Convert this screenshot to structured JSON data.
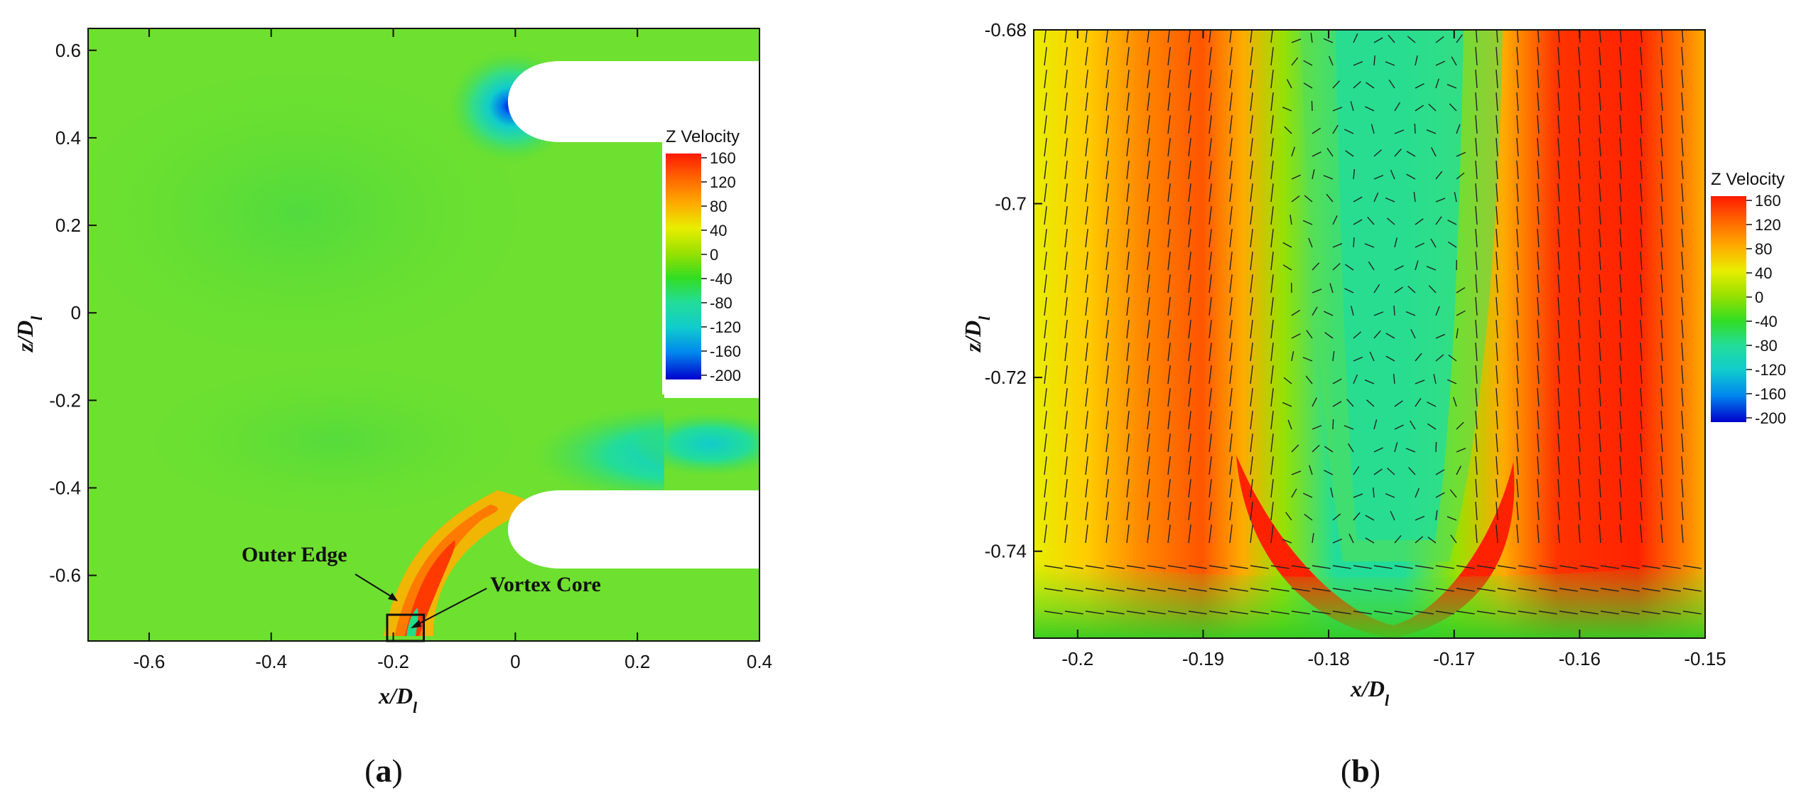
{
  "chart_data": [
    {
      "type": "heatmap",
      "panel_label": "a",
      "xlabel": "x/D",
      "xlabel_sub": "l",
      "ylabel": "z/D",
      "ylabel_sub": "l",
      "xlim": [
        -0.7,
        0.4
      ],
      "ylim": [
        -0.75,
        0.65
      ],
      "xticks": [
        "-0.6",
        "-0.4",
        "-0.2",
        "0",
        "0.2",
        "0.4"
      ],
      "xtick_values": [
        -0.6,
        -0.4,
        -0.2,
        0,
        0.2,
        0.4
      ],
      "yticks": [
        "0.6",
        "0.4",
        "0.2",
        "0",
        "-0.2",
        "-0.4",
        "-0.6"
      ],
      "ytick_values": [
        0.6,
        0.4,
        0.2,
        0,
        -0.2,
        -0.4,
        -0.6
      ],
      "legend": {
        "title": "Z Velocity",
        "placement": "right",
        "levels": [
          "160",
          "120",
          "80",
          "40",
          "0",
          "-40",
          "-80",
          "-120",
          "-160",
          "-200"
        ],
        "level_values": [
          160,
          120,
          80,
          40,
          0,
          -40,
          -80,
          -120,
          -160,
          -200
        ]
      },
      "annotations": [
        {
          "text": "Outer Edge",
          "x": -0.17,
          "z": -0.66
        },
        {
          "text": "Vortex Core",
          "x": -0.2,
          "z": -0.62
        }
      ],
      "zoom_box": {
        "x": [
          -0.21,
          -0.15
        ],
        "z": [
          -0.75,
          -0.69
        ]
      }
    },
    {
      "type": "heatmap",
      "panel_label": "b",
      "xlabel": "x/D",
      "xlabel_sub": "l",
      "ylabel": "z/D",
      "ylabel_sub": "l",
      "xlim": [
        -0.2035,
        -0.15
      ],
      "ylim": [
        -0.75,
        -0.68
      ],
      "xticks": [
        "-0.2",
        "-0.19",
        "-0.18",
        "-0.17",
        "-0.16",
        "-0.15"
      ],
      "xtick_values": [
        -0.2,
        -0.19,
        -0.18,
        -0.17,
        -0.16,
        -0.15
      ],
      "yticks": [
        "-0.68",
        "-0.7",
        "-0.72",
        "-0.74"
      ],
      "ytick_values": [
        -0.68,
        -0.7,
        -0.72,
        -0.74
      ],
      "legend": {
        "title": "Z Velocity",
        "placement": "right",
        "levels": [
          "160",
          "120",
          "80",
          "40",
          "0",
          "-40",
          "-80",
          "-120",
          "-160",
          "-200"
        ],
        "level_values": [
          160,
          120,
          80,
          40,
          0,
          -40,
          -80,
          -120,
          -160,
          -200
        ]
      },
      "vectors": true
    }
  ],
  "colormap": [
    "#ff1a00",
    "#ff6600",
    "#ffaa00",
    "#e8ee00",
    "#99e000",
    "#33dd22",
    "#22dd88",
    "#11cccc",
    "#0088ee",
    "#1133ee",
    "#0000cc"
  ]
}
